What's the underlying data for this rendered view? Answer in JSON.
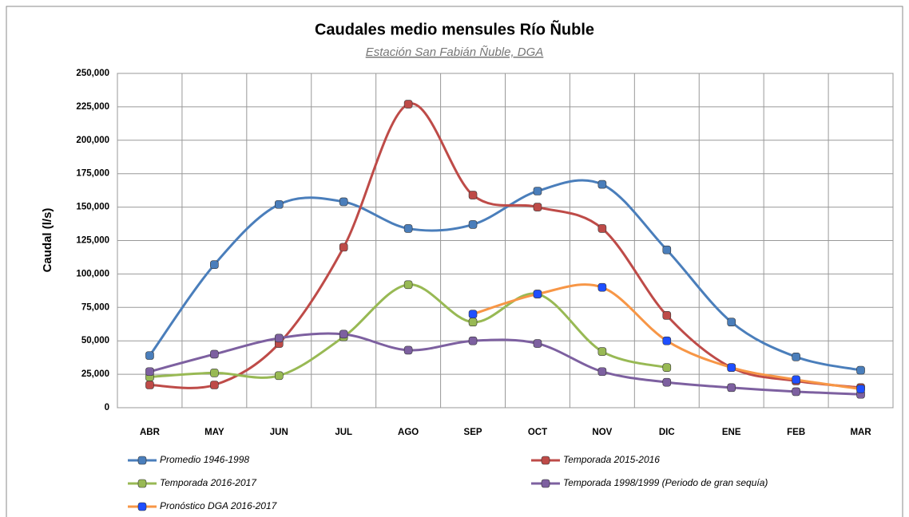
{
  "chart_data": {
    "type": "line",
    "title": "Caudales medio mensules Río Ñuble",
    "subtitle": "Estación San Fabián Ñuble, DGA",
    "y_label": "Caudal (l/s)",
    "categories": [
      "ABR",
      "MAY",
      "JUN",
      "JUL",
      "AGO",
      "SEP",
      "OCT",
      "NOV",
      "DIC",
      "ENE",
      "FEB",
      "MAR"
    ],
    "ylim": [
      0,
      250000
    ],
    "yticks": [
      0,
      {
        "value": 25000,
        "label": "25,000"
      },
      {
        "value": 50000,
        "label": "50,000"
      },
      {
        "value": 75000,
        "label": "75,000"
      },
      {
        "value": 100000,
        "label": "100,000"
      },
      {
        "value": 125000,
        "label": "125,000"
      },
      {
        "value": 150000,
        "label": "150,000"
      },
      {
        "value": 175000,
        "label": "175,000"
      },
      {
        "value": 200000,
        "label": "200,000"
      },
      {
        "value": 225000,
        "label": "225,000"
      },
      {
        "value": 250000,
        "label": "250,000"
      }
    ],
    "grid": true,
    "smooth": true,
    "series": [
      {
        "name": "Promedio 1946-1998",
        "color": "#4a7ebb",
        "marker_color": "#4a7ebb",
        "values": [
          39000,
          107000,
          152000,
          154000,
          134000,
          137000,
          162000,
          167000,
          118000,
          64000,
          38000,
          28000
        ]
      },
      {
        "name": "Temporada 2015-2016",
        "color": "#be4b48",
        "marker_color": "#be4b48",
        "values": [
          17000,
          17000,
          48000,
          120000,
          227000,
          159000,
          150000,
          134000,
          69000,
          30000,
          20000,
          15000
        ]
      },
      {
        "name": "Temporada 2016-2017",
        "color": "#98b954",
        "marker_color": "#98b954",
        "values": [
          23000,
          26000,
          24000,
          53000,
          92000,
          64000,
          85000,
          42000,
          30000,
          null,
          null,
          null
        ]
      },
      {
        "name": "Temporada 1998/1999 (Periodo de gran sequía)",
        "color": "#7d60a0",
        "marker_color": "#7d60a0",
        "values": [
          27000,
          40000,
          52000,
          55000,
          43000,
          50000,
          48000,
          27000,
          19000,
          15000,
          12000,
          10000
        ]
      },
      {
        "name": "Pronóstico DGA 2016-2017",
        "color": "#f79646",
        "marker_color": "#1f4fff",
        "values": [
          null,
          null,
          null,
          null,
          null,
          70000,
          85000,
          90000,
          50000,
          30000,
          21000,
          14000
        ]
      }
    ]
  }
}
